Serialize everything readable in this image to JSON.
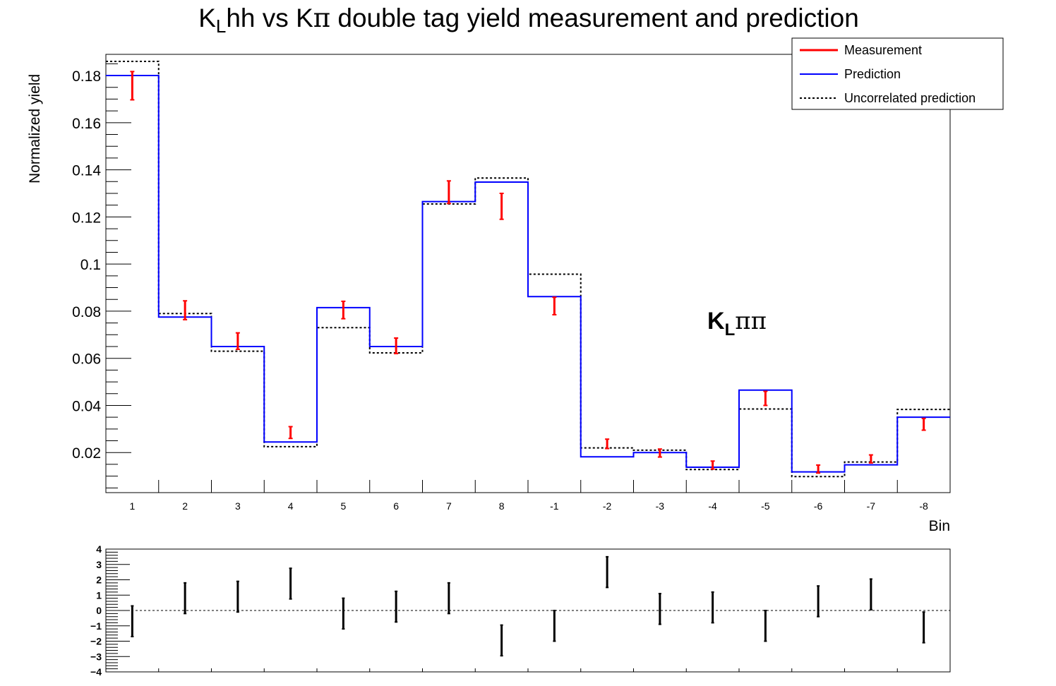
{
  "chart_data": [
    {
      "type": "line",
      "title": "K_Lhh vs Kπ double tag yield measurement and prediction",
      "title_parts": {
        "main": "K",
        "sub": "L",
        "rest": "hh vs K",
        "greek": "π",
        "tail": " double tag yield measurement and prediction"
      },
      "xlabel": "Bin",
      "ylabel": "Normalized yield",
      "annotation": {
        "main": "K",
        "sub": "L",
        "greek": "ππ"
      },
      "categories": [
        "1",
        "2",
        "3",
        "4",
        "5",
        "6",
        "7",
        "8",
        "-1",
        "-2",
        "-3",
        "-4",
        "-5",
        "-6",
        "-7",
        "-8"
      ],
      "ylim": [
        0.003,
        0.189
      ],
      "yticks": [
        0.02,
        0.04,
        0.06,
        0.08,
        0.1,
        0.12,
        0.14,
        0.16,
        0.18
      ],
      "ytick_labels": [
        "0.02",
        "0.04",
        "0.06",
        "0.08",
        "0.1",
        "0.12",
        "0.14",
        "0.16",
        "0.18"
      ],
      "legend_position": "top-right",
      "series": [
        {
          "name": "Measurement",
          "style": "error-bars",
          "color": "#ff0000",
          "values": [
            0.1757,
            0.0804,
            0.0673,
            0.0285,
            0.0805,
            0.0653,
            0.1305,
            0.1245,
            0.0822,
            0.0237,
            0.0198,
            0.0147,
            0.043,
            0.013,
            0.0173,
            0.032
          ],
          "errors": [
            0.006,
            0.004,
            0.0035,
            0.0025,
            0.0037,
            0.0033,
            0.0048,
            0.0055,
            0.0037,
            0.002,
            0.0017,
            0.0017,
            0.003,
            0.0017,
            0.0017,
            0.0025
          ]
        },
        {
          "name": "Prediction",
          "style": "step",
          "color": "#0000ff",
          "values": [
            0.18,
            0.0775,
            0.065,
            0.0245,
            0.0815,
            0.065,
            0.1265,
            0.1348,
            0.0862,
            0.0182,
            0.02,
            0.0138,
            0.0465,
            0.0118,
            0.0148,
            0.035
          ]
        },
        {
          "name": "Uncorrelated prediction",
          "style": "step-dotted",
          "color": "#000000",
          "values": [
            0.186,
            0.079,
            0.063,
            0.0225,
            0.073,
            0.0623,
            0.1255,
            0.1365,
            0.0957,
            0.022,
            0.021,
            0.0128,
            0.0385,
            0.0098,
            0.016,
            0.0383
          ]
        }
      ]
    },
    {
      "type": "scatter",
      "title": "",
      "categories": [
        "1",
        "2",
        "3",
        "4",
        "5",
        "6",
        "7",
        "8",
        "-1",
        "-2",
        "-3",
        "-4",
        "-5",
        "-6",
        "-7",
        "-8"
      ],
      "ylim": [
        -4,
        4
      ],
      "yticks": [
        -4,
        -3,
        -2,
        -1,
        0,
        1,
        2,
        3,
        4
      ],
      "ytick_labels": [
        "−4",
        "−3",
        "−2",
        "−1",
        "0",
        "1",
        "2",
        "3",
        "4"
      ],
      "reference_line": 0,
      "series": [
        {
          "name": "",
          "style": "error-bars",
          "color": "#000000",
          "values": [
            -0.7,
            0.8,
            0.9,
            1.75,
            -0.2,
            0.25,
            0.8,
            -1.95,
            -1.0,
            2.5,
            0.1,
            0.2,
            -1.0,
            0.6,
            1.05,
            -1.1
          ],
          "errors": [
            1.0,
            1.0,
            1.0,
            1.0,
            1.0,
            1.0,
            1.0,
            1.0,
            1.0,
            1.0,
            1.0,
            1.0,
            1.0,
            1.0,
            1.0,
            1.0
          ]
        }
      ]
    }
  ],
  "colors": {
    "measurement": "#ff0000",
    "prediction": "#0000ff",
    "uncorrelated": "#000000",
    "axes": "#000000"
  }
}
